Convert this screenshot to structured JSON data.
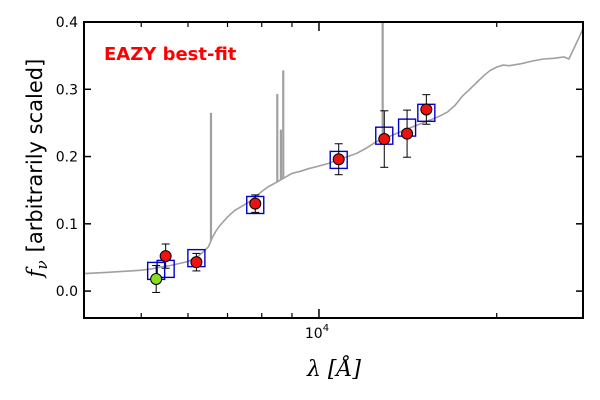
{
  "chart_data": {
    "type": "scatter",
    "title": "",
    "annotation": "EAZY best-fit",
    "annotation_color": "#ff0000",
    "ylabel_math": "f",
    "ylabel_sub": "ν",
    "ylabel_text": "[arbitrarily scaled]",
    "xlabel_main": "λ [",
    "xlabel_unit": "Å",
    "xlabel_close": "]",
    "x_scale": "log",
    "xlim": [
      4000,
      28000
    ],
    "ylim": [
      -0.04,
      0.4
    ],
    "y_ticks": [
      {
        "value": 0.0,
        "label": "0.0"
      },
      {
        "value": 0.1,
        "label": "0.1"
      },
      {
        "value": 0.2,
        "label": "0.2"
      },
      {
        "value": 0.3,
        "label": "0.3"
      },
      {
        "value": 0.4,
        "label": "0.4"
      }
    ],
    "x_major_ticks": [
      {
        "value": 10000,
        "base": "10",
        "exp": "4"
      }
    ],
    "x_minor_ticks": [
      5000,
      6000,
      7000,
      8000,
      9000,
      20000
    ],
    "colors": {
      "template": "#a0a0a0",
      "model_box": "#0000cc",
      "observed": "#ee1111",
      "highlight": "#88dd22",
      "errorbar": "#000000"
    },
    "template_spectrum": [
      [
        4000,
        0.026
      ],
      [
        4200,
        0.027
      ],
      [
        4400,
        0.028
      ],
      [
        4600,
        0.029
      ],
      [
        4800,
        0.03
      ],
      [
        5000,
        0.031
      ],
      [
        5200,
        0.033
      ],
      [
        5400,
        0.036
      ],
      [
        5600,
        0.038
      ],
      [
        5800,
        0.041
      ],
      [
        6000,
        0.044
      ],
      [
        6100,
        0.047
      ],
      [
        6250,
        0.052
      ],
      [
        6400,
        0.06
      ],
      [
        6500,
        0.066
      ],
      [
        6600,
        0.08
      ],
      [
        6700,
        0.09
      ],
      [
        6800,
        0.098
      ],
      [
        7000,
        0.11
      ],
      [
        7200,
        0.12
      ],
      [
        7400,
        0.126
      ],
      [
        7600,
        0.132
      ],
      [
        7800,
        0.14
      ],
      [
        8000,
        0.148
      ],
      [
        8200,
        0.155
      ],
      [
        8400,
        0.16
      ],
      [
        8600,
        0.165
      ],
      [
        8800,
        0.17
      ],
      [
        9000,
        0.175
      ],
      [
        9300,
        0.178
      ],
      [
        9600,
        0.182
      ],
      [
        10000,
        0.186
      ],
      [
        10400,
        0.19
      ],
      [
        10800,
        0.196
      ],
      [
        11200,
        0.2
      ],
      [
        11600,
        0.205
      ],
      [
        12000,
        0.212
      ],
      [
        12500,
        0.222
      ],
      [
        13000,
        0.228
      ],
      [
        13500,
        0.234
      ],
      [
        14000,
        0.24
      ],
      [
        14500,
        0.245
      ],
      [
        15000,
        0.25
      ],
      [
        15500,
        0.255
      ],
      [
        16000,
        0.26
      ],
      [
        16500,
        0.266
      ],
      [
        17000,
        0.276
      ],
      [
        17500,
        0.29
      ],
      [
        18000,
        0.3
      ],
      [
        18500,
        0.31
      ],
      [
        19000,
        0.32
      ],
      [
        19500,
        0.328
      ],
      [
        20000,
        0.333
      ],
      [
        20500,
        0.336
      ],
      [
        21000,
        0.335
      ],
      [
        22000,
        0.338
      ],
      [
        23000,
        0.342
      ],
      [
        24000,
        0.345
      ],
      [
        25000,
        0.346
      ],
      [
        26000,
        0.348
      ],
      [
        26500,
        0.345
      ],
      [
        27000,
        0.36
      ],
      [
        27500,
        0.375
      ],
      [
        28000,
        0.39
      ]
    ],
    "emission_lines": [
      {
        "x": 6563,
        "peak": 0.265
      },
      {
        "x": 8500,
        "peak": 0.293
      },
      {
        "x": 8700,
        "peak": 0.328
      },
      {
        "x": 8620,
        "peak": 0.24
      },
      {
        "x": 12820,
        "peak": 0.4
      }
    ],
    "model_photometry": [
      {
        "x": 5300,
        "y": 0.03
      },
      {
        "x": 5500,
        "y": 0.033
      },
      {
        "x": 6200,
        "y": 0.049
      },
      {
        "x": 7800,
        "y": 0.128
      },
      {
        "x": 10800,
        "y": 0.195
      },
      {
        "x": 12900,
        "y": 0.231
      },
      {
        "x": 14100,
        "y": 0.243
      },
      {
        "x": 15200,
        "y": 0.265
      }
    ],
    "observed_photometry": [
      {
        "x": 5300,
        "y": 0.018,
        "err": 0.02,
        "highlight": true
      },
      {
        "x": 5500,
        "y": 0.052,
        "err": 0.018,
        "highlight": false
      },
      {
        "x": 6200,
        "y": 0.043,
        "err": 0.013,
        "highlight": false
      },
      {
        "x": 7800,
        "y": 0.13,
        "err": 0.013,
        "highlight": false
      },
      {
        "x": 10800,
        "y": 0.196,
        "err": 0.023,
        "highlight": false
      },
      {
        "x": 12900,
        "y": 0.226,
        "err": 0.042,
        "highlight": false
      },
      {
        "x": 14100,
        "y": 0.234,
        "err": 0.035,
        "highlight": false
      },
      {
        "x": 15200,
        "y": 0.27,
        "err": 0.022,
        "highlight": false
      }
    ],
    "grid": false,
    "legend": "none"
  }
}
